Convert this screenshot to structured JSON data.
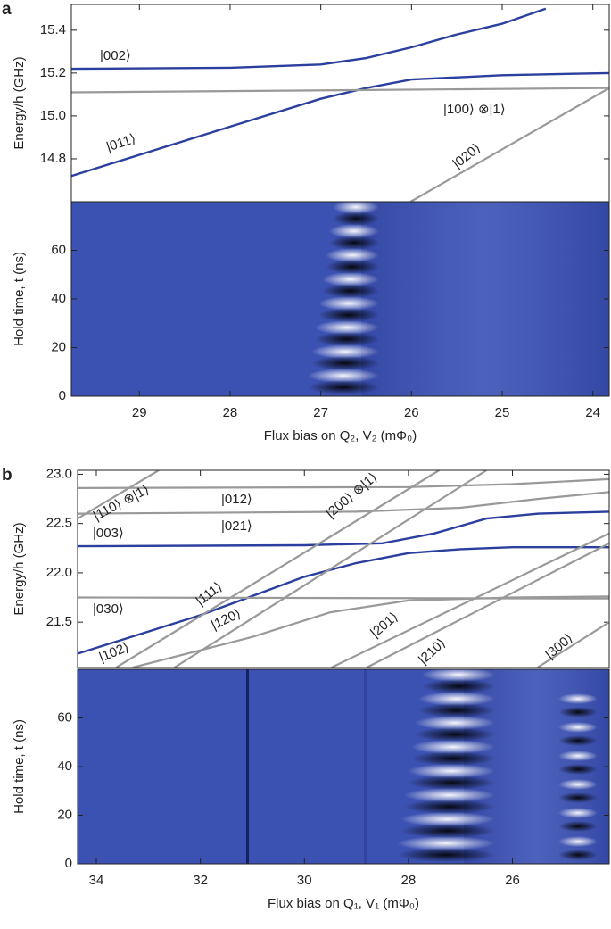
{
  "chart_data": [
    {
      "type": "line",
      "panel": "a",
      "ylabel": "Energy/h (GHz)",
      "xlim": [
        29.75,
        23.82
      ],
      "ylim": [
        14.6,
        15.52
      ],
      "yticks": [
        14.8,
        {
          "value": 15,
          "label": "15.0"
        },
        15.2,
        15.4
      ],
      "series": [
        {
          "name": "|002⟩",
          "color": "#2b3f9e",
          "x": [
            29.75,
            28,
            27,
            26.5,
            26,
            25.5,
            25,
            24.52
          ],
          "values": [
            15.22,
            15.225,
            15.24,
            15.27,
            15.32,
            15.38,
            15.43,
            15.5
          ]
        },
        {
          "name": "|011⟩",
          "color": "#2b3f9e",
          "x": [
            29.75,
            28,
            27,
            26.5,
            26,
            25,
            23.82
          ],
          "values": [
            14.72,
            14.95,
            15.08,
            15.13,
            15.17,
            15.19,
            15.2
          ]
        },
        {
          "name": "|100⟩ ⊗|1⟩",
          "color": "#999999",
          "x": [
            29.75,
            23.82
          ],
          "values": [
            15.11,
            15.13
          ]
        },
        {
          "name": "|020⟩",
          "color": "#999999",
          "x": [
            26.01,
            23.82
          ],
          "values": [
            14.6,
            15.13
          ]
        }
      ]
    },
    {
      "type": "heatmap",
      "ylabel": "Hold time, t (ns)",
      "xlabel": "Flux bias on Q₂, V₂ (mΦ₀)",
      "xlim": [
        29.75,
        23.82
      ],
      "xticks": [
        29,
        28,
        27,
        26,
        25,
        24
      ],
      "ylim": [
        0,
        80
      ],
      "yticks": [
        0,
        20,
        40,
        60
      ]
    },
    {
      "type": "line",
      "panel": "b",
      "ylabel": "Energy/h (GHz)",
      "xlim": [
        34.36,
        24.14
      ],
      "ylim": [
        21.04,
        23.04
      ],
      "yticks": [
        21.5,
        {
          "value": 22,
          "label": "22.0"
        },
        22.5,
        {
          "value": 23,
          "label": "23.0"
        }
      ],
      "series": [
        {
          "name": "|003⟩",
          "color": "#2b3f9e",
          "x": [
            34.36,
            30,
            28.5,
            27.5,
            26.5,
            25.5,
            24.14
          ],
          "values": [
            22.27,
            22.28,
            22.3,
            22.4,
            22.55,
            22.6,
            22.62
          ]
        },
        {
          "name": "|102⟩",
          "color": "#2b3f9e",
          "x": [
            34.36,
            32,
            30,
            29,
            28,
            27,
            26,
            24.14
          ],
          "values": [
            21.18,
            21.57,
            21.96,
            22.1,
            22.2,
            22.24,
            22.26,
            22.26
          ]
        },
        {
          "name": "|030⟩",
          "color": "#999999",
          "x": [
            34.36,
            24.14
          ],
          "values": [
            21.75,
            21.74
          ]
        },
        {
          "name": "|120⟩",
          "color": "#999999",
          "x": [
            33.3,
            31,
            29.5,
            28,
            26,
            24.14
          ],
          "values": [
            21.04,
            21.35,
            21.6,
            21.72,
            21.75,
            21.76
          ]
        },
        {
          "name": "|111⟩",
          "color": "#999999",
          "x": [
            33.62,
            27.41
          ],
          "values": [
            21.04,
            23.04
          ]
        },
        {
          "name": "|012⟩",
          "color": "#999999",
          "x": [
            34.36,
            28,
            26,
            24.14
          ],
          "values": [
            22.86,
            22.87,
            22.9,
            22.95
          ]
        },
        {
          "name": "|021⟩",
          "color": "#999999",
          "x": [
            34.36,
            29,
            27,
            25.5,
            24.14
          ],
          "values": [
            22.6,
            22.62,
            22.66,
            22.75,
            22.82
          ]
        },
        {
          "name": "|110⟩ ⊗|1⟩",
          "color": "#999999",
          "x": [
            34.36,
            32.8
          ],
          "values": [
            22.55,
            23.04
          ]
        },
        {
          "name": "|200⟩ ⊗|1⟩",
          "color": "#999999",
          "x": [
            32.5,
            26.5
          ],
          "values": [
            21.04,
            23.04
          ]
        },
        {
          "name": "|201⟩",
          "color": "#999999",
          "x": [
            29.48,
            24.14
          ],
          "values": [
            21.04,
            22.4
          ]
        },
        {
          "name": "|210⟩",
          "color": "#999999",
          "x": [
            28.8,
            24.14
          ],
          "values": [
            21.04,
            22.3
          ]
        },
        {
          "name": "|300⟩",
          "color": "#999999",
          "x": [
            25.52,
            24.14
          ],
          "values": [
            21.04,
            21.5
          ]
        }
      ]
    },
    {
      "type": "heatmap",
      "ylabel": "Hold time, t (ns)",
      "xlabel": "Flux bias on Q₁, V₁ (mΦ₀)",
      "xlim": [
        34.36,
        24.14
      ],
      "xticks": [
        34,
        32,
        30,
        28,
        26
      ],
      "ylim": [
        0,
        80
      ],
      "yticks": [
        0,
        20,
        40,
        60
      ]
    }
  ]
}
